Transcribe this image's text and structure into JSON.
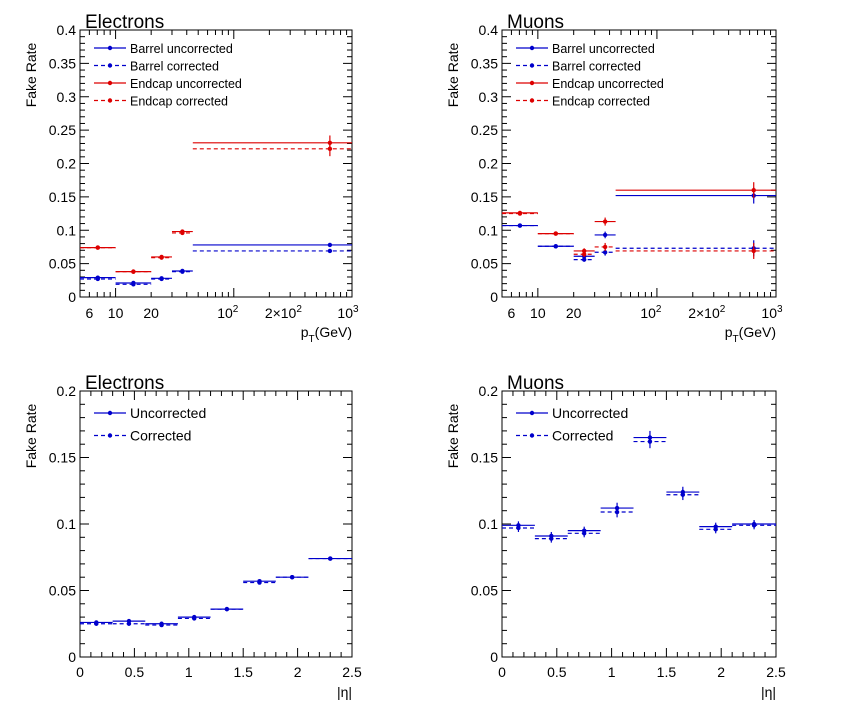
{
  "chart_data": [
    {
      "type": "line",
      "title": "Electrons",
      "xlabel": "p_T(GeV)",
      "xlabel_main": "p",
      "xlabel_sub": "T",
      "xlabel_unit": "(GeV)",
      "ylabel": "Fake Rate",
      "xscale": "log",
      "xlim": [
        5,
        1000
      ],
      "ylim": [
        0,
        0.4
      ],
      "xticklabels": [
        "6",
        "10",
        "20",
        "10",
        "2×10",
        "10"
      ],
      "xticklabel_exponents": [
        "",
        "",
        "",
        "2",
        "2",
        "3"
      ],
      "yticklabels": [
        "0",
        "0.05",
        "0.1",
        "0.15",
        "0.2",
        "0.25",
        "0.3",
        "0.35",
        "0.4"
      ],
      "legend_position": "top-left",
      "series": [
        {
          "name": "Barrel uncorrected",
          "color": "#0000cc",
          "dash": false,
          "bins": [
            [
              5,
              10
            ],
            [
              10,
              20
            ],
            [
              20,
              30
            ],
            [
              30,
              45
            ],
            [
              45,
              1000
            ]
          ],
          "values": [
            0.029,
            0.021,
            0.028,
            0.039,
            0.078
          ],
          "errors": [
            0.001,
            0.001,
            0.001,
            0.001,
            0.002
          ]
        },
        {
          "name": "Barrel corrected",
          "color": "#0000cc",
          "dash": true,
          "bins": [
            [
              5,
              10
            ],
            [
              10,
              20
            ],
            [
              20,
              30
            ],
            [
              30,
              45
            ],
            [
              45,
              1000
            ]
          ],
          "values": [
            0.027,
            0.019,
            0.027,
            0.038,
            0.069
          ],
          "errors": [
            0.001,
            0.001,
            0.001,
            0.001,
            0.002
          ]
        },
        {
          "name": "Endcap uncorrected",
          "color": "#dd0000",
          "dash": false,
          "bins": [
            [
              5,
              10
            ],
            [
              10,
              20
            ],
            [
              20,
              30
            ],
            [
              30,
              45
            ],
            [
              45,
              1000
            ]
          ],
          "values": [
            0.074,
            0.038,
            0.06,
            0.098,
            0.231
          ],
          "errors": [
            0.001,
            0.001,
            0.002,
            0.003,
            0.011
          ]
        },
        {
          "name": "Endcap corrected",
          "color": "#dd0000",
          "dash": true,
          "bins": [
            [
              5,
              10
            ],
            [
              10,
              20
            ],
            [
              20,
              30
            ],
            [
              30,
              45
            ],
            [
              45,
              1000
            ]
          ],
          "values": [
            0.074,
            0.038,
            0.059,
            0.096,
            0.222
          ],
          "errors": [
            0.001,
            0.001,
            0.002,
            0.003,
            0.011
          ]
        }
      ]
    },
    {
      "type": "line",
      "title": "Muons",
      "xlabel": "p_T(GeV)",
      "xlabel_main": "p",
      "xlabel_sub": "T",
      "xlabel_unit": "(GeV)",
      "ylabel": "Fake Rate",
      "xscale": "log",
      "xlim": [
        5,
        1000
      ],
      "ylim": [
        0,
        0.4
      ],
      "xticklabels": [
        "6",
        "10",
        "20",
        "10",
        "2×10",
        "10"
      ],
      "xticklabel_exponents": [
        "",
        "",
        "",
        "2",
        "2",
        "3"
      ],
      "yticklabels": [
        "0",
        "0.05",
        "0.1",
        "0.15",
        "0.2",
        "0.25",
        "0.3",
        "0.35",
        "0.4"
      ],
      "legend_position": "top-left",
      "series": [
        {
          "name": "Barrel uncorrected",
          "color": "#0000cc",
          "dash": false,
          "bins": [
            [
              5,
              10
            ],
            [
              10,
              20
            ],
            [
              20,
              30
            ],
            [
              30,
              45
            ],
            [
              45,
              1000
            ]
          ],
          "values": [
            0.107,
            0.076,
            0.061,
            0.093,
            0.152
          ],
          "errors": [
            0.002,
            0.002,
            0.003,
            0.005,
            0.012
          ]
        },
        {
          "name": "Barrel corrected",
          "color": "#0000cc",
          "dash": true,
          "bins": [
            [
              5,
              10
            ],
            [
              10,
              20
            ],
            [
              20,
              30
            ],
            [
              30,
              45
            ],
            [
              45,
              1000
            ]
          ],
          "values": [
            0.107,
            0.076,
            0.056,
            0.067,
            0.073
          ],
          "errors": [
            0.002,
            0.002,
            0.003,
            0.005,
            0.012
          ]
        },
        {
          "name": "Endcap uncorrected",
          "color": "#dd0000",
          "dash": false,
          "bins": [
            [
              5,
              10
            ],
            [
              10,
              20
            ],
            [
              20,
              30
            ],
            [
              30,
              45
            ],
            [
              45,
              1000
            ]
          ],
          "values": [
            0.126,
            0.095,
            0.069,
            0.113,
            0.16
          ],
          "errors": [
            0.002,
            0.002,
            0.004,
            0.006,
            0.012
          ]
        },
        {
          "name": "Endcap corrected",
          "color": "#dd0000",
          "dash": true,
          "bins": [
            [
              5,
              10
            ],
            [
              10,
              20
            ],
            [
              20,
              30
            ],
            [
              30,
              45
            ],
            [
              45,
              1000
            ]
          ],
          "values": [
            0.125,
            0.095,
            0.064,
            0.075,
            0.069
          ],
          "errors": [
            0.002,
            0.002,
            0.004,
            0.006,
            0.012
          ]
        }
      ]
    },
    {
      "type": "line",
      "title": "Electrons",
      "xlabel": "|η|",
      "ylabel": "Fake Rate",
      "xscale": "linear",
      "xlim": [
        0,
        2.5
      ],
      "ylim": [
        0,
        0.2
      ],
      "xticklabels": [
        "0",
        "0.5",
        "1",
        "1.5",
        "2",
        "2.5"
      ],
      "yticklabels": [
        "0",
        "0.05",
        "0.1",
        "0.15",
        "0.2"
      ],
      "legend_position": "top-left",
      "series": [
        {
          "name": "Uncorrected",
          "color": "#0000cc",
          "dash": false,
          "bins": [
            [
              0,
              0.3
            ],
            [
              0.3,
              0.6
            ],
            [
              0.6,
              0.9
            ],
            [
              0.9,
              1.2
            ],
            [
              1.2,
              1.5
            ],
            [
              1.5,
              1.8
            ],
            [
              1.8,
              2.1
            ],
            [
              2.1,
              2.5
            ]
          ],
          "values": [
            0.026,
            0.027,
            0.025,
            0.03,
            0.036,
            0.057,
            0.06,
            0.074
          ],
          "errors": [
            0.0005,
            0.0005,
            0.0005,
            0.0005,
            0.0007,
            0.001,
            0.001,
            0.0008
          ]
        },
        {
          "name": "Corrected",
          "color": "#0000cc",
          "dash": true,
          "bins": [
            [
              0,
              0.3
            ],
            [
              0.3,
              0.6
            ],
            [
              0.6,
              0.9
            ],
            [
              0.9,
              1.2
            ],
            [
              1.2,
              1.5
            ],
            [
              1.5,
              1.8
            ],
            [
              1.8,
              2.1
            ],
            [
              2.1,
              2.5
            ]
          ],
          "values": [
            0.025,
            0.025,
            0.024,
            0.029,
            0.036,
            0.056,
            0.06,
            0.074
          ],
          "errors": [
            0.0005,
            0.0005,
            0.0005,
            0.0005,
            0.0007,
            0.001,
            0.001,
            0.0008
          ]
        }
      ]
    },
    {
      "type": "line",
      "title": "Muons",
      "xlabel": "|η|",
      "ylabel": "Fake Rate",
      "xscale": "linear",
      "xlim": [
        0,
        2.5
      ],
      "ylim": [
        0,
        0.2
      ],
      "xticklabels": [
        "0",
        "0.5",
        "1",
        "1.5",
        "2",
        "2.5"
      ],
      "yticklabels": [
        "0",
        "0.05",
        "0.1",
        "0.15",
        "0.2"
      ],
      "legend_position": "top-left",
      "series": [
        {
          "name": "Uncorrected",
          "color": "#0000cc",
          "dash": false,
          "bins": [
            [
              0,
              0.3
            ],
            [
              0.3,
              0.6
            ],
            [
              0.6,
              0.9
            ],
            [
              0.9,
              1.2
            ],
            [
              1.2,
              1.5
            ],
            [
              1.5,
              1.8
            ],
            [
              1.8,
              2.1
            ],
            [
              2.1,
              2.5
            ]
          ],
          "values": [
            0.099,
            0.091,
            0.095,
            0.112,
            0.165,
            0.124,
            0.098,
            0.1
          ],
          "errors": [
            0.003,
            0.003,
            0.003,
            0.004,
            0.005,
            0.004,
            0.003,
            0.003
          ]
        },
        {
          "name": "Corrected",
          "color": "#0000cc",
          "dash": true,
          "bins": [
            [
              0,
              0.3
            ],
            [
              0.3,
              0.6
            ],
            [
              0.6,
              0.9
            ],
            [
              0.9,
              1.2
            ],
            [
              1.2,
              1.5
            ],
            [
              1.5,
              1.8
            ],
            [
              1.8,
              2.1
            ],
            [
              2.1,
              2.5
            ]
          ],
          "values": [
            0.097,
            0.089,
            0.093,
            0.109,
            0.162,
            0.122,
            0.096,
            0.099
          ],
          "errors": [
            0.003,
            0.003,
            0.003,
            0.004,
            0.005,
            0.004,
            0.003,
            0.003
          ]
        }
      ]
    }
  ]
}
